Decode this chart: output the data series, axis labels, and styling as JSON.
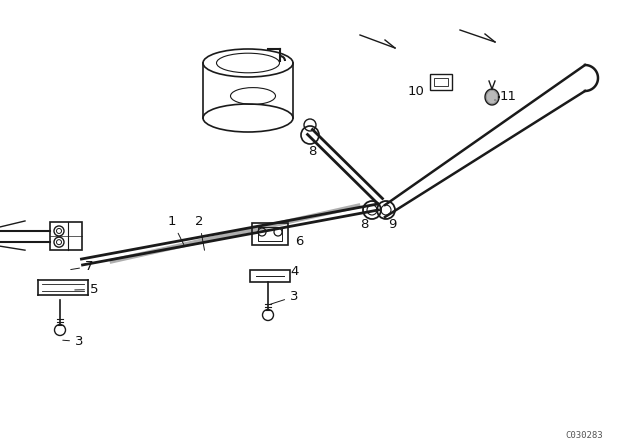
{
  "bg_color": "#ffffff",
  "line_color": "#1a1a1a",
  "watermark": "C030283",
  "figsize": [
    6.4,
    4.48
  ],
  "dpi": 100,
  "xlim": [
    0,
    640
  ],
  "ylim": [
    0,
    448
  ]
}
